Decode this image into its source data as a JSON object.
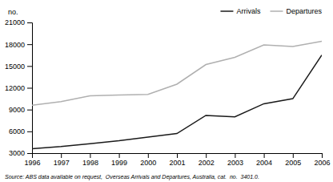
{
  "chart_data": {
    "type": "line",
    "ylabel": "no.",
    "annotations": [
      "Source: ABS data available on request,  Overseas Arrivals and Departures, Australia, cat.  no.  3401.0."
    ],
    "x": [
      1996,
      1997,
      1998,
      1999,
      2000,
      2001,
      2002,
      2003,
      2004,
      2005,
      2006
    ],
    "series": [
      {
        "name": "Arrivals",
        "color": "#1a1a1a",
        "values": [
          3600,
          3900,
          4300,
          4700,
          5200,
          5700,
          8200,
          8000,
          9800,
          10500,
          16500
        ]
      },
      {
        "name": "Departures",
        "color": "#b0b0b0",
        "values": [
          9600,
          10100,
          10900,
          11000,
          11100,
          12500,
          15200,
          16200,
          17900,
          17700,
          18400
        ]
      }
    ],
    "xlim": [
      1996,
      2006
    ],
    "xticks": [
      1996,
      1997,
      1998,
      1999,
      2000,
      2001,
      2002,
      2003,
      2004,
      2005,
      2006
    ],
    "ylim": [
      3000,
      21000
    ],
    "yticks": [
      3000,
      6000,
      9000,
      12000,
      15000,
      18000,
      21000
    ],
    "grid": false,
    "legend": "top-right"
  }
}
